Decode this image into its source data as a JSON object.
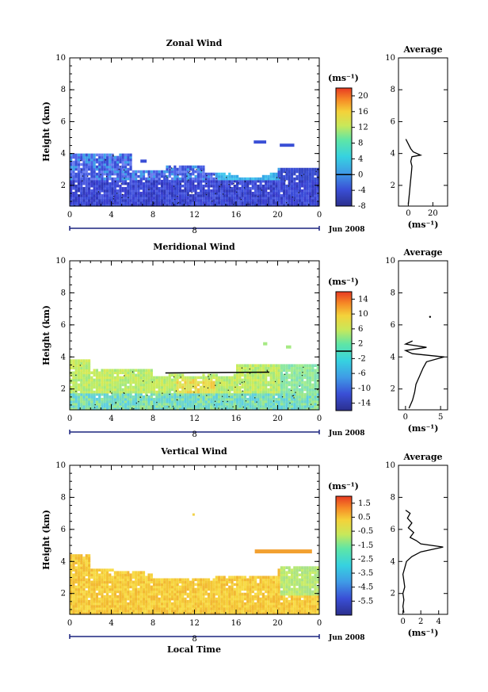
{
  "chart_data": [
    {
      "type": "heatmap",
      "id": "zonal",
      "title": "Zonal Wind",
      "ylabel": "Height (km)",
      "xlabel": "",
      "xlim": [
        0,
        24
      ],
      "ylim": [
        0.7,
        10
      ],
      "x_ticks": [
        "0",
        "4",
        "8",
        "12",
        "16",
        "20",
        "0"
      ],
      "y_ticks": [
        "2",
        "4",
        "6",
        "8",
        "10"
      ],
      "day_label": "8",
      "date_label": "Jun 2008",
      "colorbar": {
        "unit": "(ms⁻¹)",
        "range": [
          -8,
          22
        ],
        "ticks": [
          "20",
          "16",
          "12",
          "8",
          "4",
          "0",
          "-4",
          "-8"
        ],
        "tick_values": [
          20,
          16,
          12,
          8,
          4,
          0,
          -4,
          -8
        ],
        "zero_line": 0
      },
      "profile": {
        "title": "Average",
        "xlim": [
          -8,
          32
        ],
        "ylim": [
          0.7,
          10
        ],
        "x_ticks": [
          "0",
          "20"
        ],
        "x_tick_values": [
          0,
          20
        ],
        "y_ticks": [
          "2",
          "4",
          "6",
          "8",
          "10"
        ],
        "xlabel": "(ms⁻¹)",
        "points": [
          [
            0,
            0.8
          ],
          [
            0.5,
            1.2
          ],
          [
            1,
            1.6
          ],
          [
            1.5,
            2
          ],
          [
            2,
            2.4
          ],
          [
            2.5,
            2.8
          ],
          [
            3,
            3.2
          ],
          [
            2,
            3.5
          ],
          [
            3,
            3.8
          ],
          [
            10,
            3.9
          ],
          [
            4,
            4.1
          ],
          [
            2,
            4.3
          ],
          [
            0,
            4.6
          ],
          [
            -2,
            4.9
          ]
        ]
      }
    },
    {
      "type": "heatmap",
      "id": "meridional",
      "title": "Meridional Wind",
      "ylabel": "Height (km)",
      "xlabel": "",
      "xlim": [
        0,
        24
      ],
      "ylim": [
        0.7,
        10
      ],
      "x_ticks": [
        "0",
        "4",
        "8",
        "12",
        "16",
        "20",
        "0"
      ],
      "y_ticks": [
        "2",
        "4",
        "6",
        "8",
        "10"
      ],
      "day_label": "8",
      "date_label": "Jun 2008",
      "colorbar": {
        "unit": "(ms⁻¹)",
        "range": [
          -16,
          16
        ],
        "ticks": [
          "14",
          "10",
          "6",
          "2",
          "-2",
          "-6",
          "-10",
          "-14"
        ],
        "tick_values": [
          14,
          10,
          6,
          2,
          -2,
          -6,
          -10,
          -14
        ],
        "zero_line": 0
      },
      "profile": {
        "title": "Average",
        "xlim": [
          -1,
          6
        ],
        "ylim": [
          0.7,
          10
        ],
        "x_ticks": [
          "0",
          "5"
        ],
        "x_tick_values": [
          0,
          5
        ],
        "y_ticks": [
          "2",
          "4",
          "6",
          "8",
          "10"
        ],
        "xlabel": "(ms⁻¹)",
        "points": [
          [
            0.5,
            0.8
          ],
          [
            1,
            1.3
          ],
          [
            1.3,
            1.8
          ],
          [
            1.5,
            2.3
          ],
          [
            2,
            2.8
          ],
          [
            2.5,
            3.3
          ],
          [
            3,
            3.7
          ],
          [
            5.5,
            4.0
          ],
          [
            1,
            4.2
          ],
          [
            0,
            4.4
          ],
          [
            3,
            4.6
          ],
          [
            0,
            4.8
          ],
          [
            1,
            5.0
          ]
        ],
        "isolated_point": [
          3.5,
          6.5
        ]
      }
    },
    {
      "type": "heatmap",
      "id": "vertical",
      "title": "Vertical Wind",
      "ylabel": "Height (km)",
      "xlabel": "Local Time",
      "xlim": [
        0,
        24
      ],
      "ylim": [
        0.7,
        10
      ],
      "x_ticks": [
        "0",
        "4",
        "8",
        "12",
        "16",
        "20",
        "0"
      ],
      "y_ticks": [
        "2",
        "4",
        "6",
        "8",
        "10"
      ],
      "day_label": "8",
      "date_label": "Jun 2008",
      "colorbar": {
        "unit": "(ms⁻¹)",
        "range": [
          -6.5,
          2
        ],
        "ticks": [
          "1.5",
          "0.5",
          "-0.5",
          "-1.5",
          "-2.5",
          "-3.5",
          "-4.5",
          "-5.5"
        ],
        "tick_values": [
          1.5,
          0.5,
          -0.5,
          -1.5,
          -2.5,
          -3.5,
          -4.5,
          -5.5
        ]
      },
      "profile": {
        "title": "Average",
        "xlim": [
          -0.5,
          5
        ],
        "ylim": [
          0.7,
          10
        ],
        "x_ticks": [
          "0",
          "2",
          "4"
        ],
        "x_tick_values": [
          0,
          2,
          4
        ],
        "y_ticks": [
          "2",
          "4",
          "6",
          "8",
          "10"
        ],
        "xlabel": "(ms⁻¹)",
        "points": [
          [
            0.1,
            0.8
          ],
          [
            0,
            1.2
          ],
          [
            0.1,
            1.6
          ],
          [
            0,
            2
          ],
          [
            0.2,
            2.4
          ],
          [
            0.1,
            2.8
          ],
          [
            0,
            3.2
          ],
          [
            0.2,
            3.6
          ],
          [
            0.4,
            4
          ],
          [
            1,
            4.3
          ],
          [
            2,
            4.6
          ],
          [
            4.5,
            4.9
          ],
          [
            2,
            5.1
          ],
          [
            1.5,
            5.3
          ],
          [
            0.8,
            5.5
          ],
          [
            1.2,
            5.8
          ],
          [
            0.6,
            6.1
          ],
          [
            1.0,
            6.4
          ],
          [
            0.5,
            6.7
          ],
          [
            0.8,
            7.0
          ],
          [
            0.3,
            7.2
          ]
        ]
      }
    }
  ]
}
